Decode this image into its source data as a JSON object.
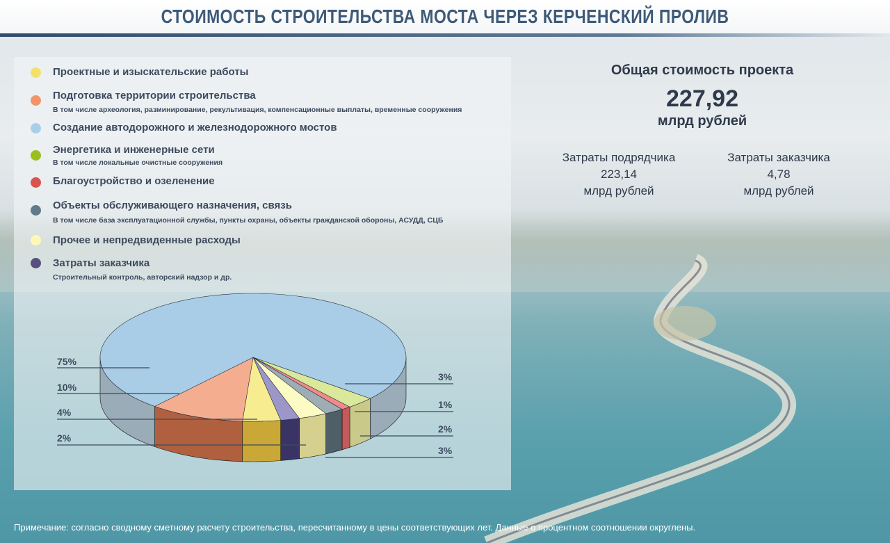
{
  "title": "СТОИМОСТЬ СТРОИТЕЛЬСТВА МОСТА ЧЕРЕЗ КЕРЧЕНСКИЙ ПРОЛИВ",
  "legend": [
    {
      "label": "Проектные и изыскательские работы",
      "sub": "",
      "color": "#f3e06a"
    },
    {
      "label": "Подготовка территории строительства",
      "sub": "В том числе археология, разминирование, рекультивация, компенсационные выплаты, временные сооружения",
      "color": "#f0956a"
    },
    {
      "label": "Создание автодорожного и железнодорожного мостов",
      "sub": "",
      "color": "#a9cfe8"
    },
    {
      "label": "Энергетика и инженерные сети",
      "sub": "В том числе локальные очистные сооружения",
      "color": "#9cbf1e"
    },
    {
      "label": "Благоустройство и озеленение",
      "sub": "",
      "color": "#d9534f"
    },
    {
      "label": "Объекты обслуживающего назначения, связь",
      "sub": "В том числе база эксплуатационной службы, пункты охраны, объекты гражданской обороны, АСУДД, СЦБ",
      "color": "#5f7a88"
    },
    {
      "label": "Прочее и непредвиденные расходы",
      "sub": "",
      "color": "#fdf8b8"
    },
    {
      "label": "Затраты заказчика",
      "sub": "Строительный контроль, авторский надзор и др.",
      "color": "#56507f"
    }
  ],
  "chart_data": {
    "type": "pie",
    "title": "Стоимость строительства моста через Керченский пролив",
    "slices": [
      {
        "name": "Энергетика и инженерные сети",
        "value": 3,
        "label": "3%",
        "color": "#d9e89a",
        "side": "#c9c98a"
      },
      {
        "name": "Благоустройство и озеленение",
        "value": 1,
        "label": "1%",
        "color": "#f08a8a",
        "side": "#c45a5a"
      },
      {
        "name": "Объекты обслуживающего назначения, связь",
        "value": 2,
        "label": "2%",
        "color": "#9eadb4",
        "side": "#4f5f68"
      },
      {
        "name": "Прочее и непредвиденные расходы",
        "value": 3,
        "label": "3%",
        "color": "#fdfbc4",
        "side": "#d6d08e"
      },
      {
        "name": "Затраты заказчика",
        "value": 2,
        "label": "2%",
        "color": "#9c97c8",
        "side": "#3a3466"
      },
      {
        "name": "Проектные и изыскательские работы",
        "value": 4,
        "label": "4%",
        "color": "#f8ec90",
        "side": "#c9a837"
      },
      {
        "name": "Подготовка территории строительства",
        "value": 10,
        "label": "10%",
        "color": "#f5ad90",
        "side": "#b0603f"
      },
      {
        "name": "Создание автодорожного и железнодорожного мостов",
        "value": 75,
        "label": "75%",
        "color": "#a9cde6",
        "side": "#9aacb8"
      }
    ]
  },
  "summary": {
    "heading": "Общая стоимость проекта",
    "total": "227,92",
    "unit": "млрд рублей",
    "contractor": {
      "label": "Затраты подрядчика",
      "value": "223,14",
      "unit": "млрд рублей"
    },
    "customer": {
      "label": "Затраты заказчика",
      "value": "4,78",
      "unit": "млрд рублей"
    }
  },
  "note": "Примечание: согласно сводному сметному расчету строительства, пересчитанному в цены соответствующих лет. Данные о процентном соотношении округлены."
}
